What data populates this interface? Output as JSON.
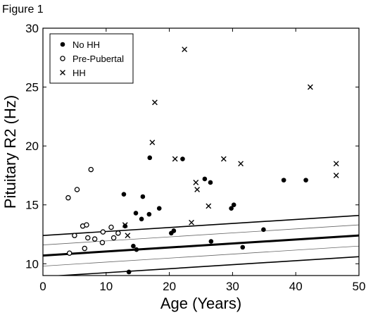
{
  "figure_label": "Figure 1",
  "chart_data": {
    "type": "scatter",
    "xlabel": "Age (Years)",
    "ylabel": "Pituitary R2 (Hz)",
    "xlim": [
      0,
      50
    ],
    "ylim": [
      9,
      30
    ],
    "x_ticks": [
      0,
      10,
      20,
      30,
      40,
      50
    ],
    "y_ticks": [
      10,
      15,
      20,
      25,
      30
    ],
    "grid": false,
    "legend_position": "top-left",
    "series": [
      {
        "name": "No HH",
        "marker": "filled-circle",
        "points": [
          [
            12.8,
            15.9
          ],
          [
            13.0,
            13.2
          ],
          [
            13.6,
            9.3
          ],
          [
            14.3,
            11.5
          ],
          [
            14.7,
            14.3
          ],
          [
            14.8,
            11.2
          ],
          [
            15.6,
            13.8
          ],
          [
            15.8,
            15.7
          ],
          [
            16.8,
            14.2
          ],
          [
            16.9,
            19.0
          ],
          [
            18.4,
            14.7
          ],
          [
            20.3,
            12.6
          ],
          [
            20.7,
            12.8
          ],
          [
            22.1,
            18.9
          ],
          [
            25.6,
            17.2
          ],
          [
            26.5,
            16.9
          ],
          [
            26.6,
            11.9
          ],
          [
            29.8,
            14.7
          ],
          [
            30.2,
            15.0
          ],
          [
            31.6,
            11.4
          ],
          [
            34.9,
            12.9
          ],
          [
            38.1,
            17.1
          ],
          [
            41.6,
            17.1
          ]
        ]
      },
      {
        "name": "Pre-Pubertal",
        "marker": "open-circle",
        "points": [
          [
            4.0,
            15.6
          ],
          [
            4.2,
            10.9
          ],
          [
            5.0,
            12.4
          ],
          [
            5.4,
            16.3
          ],
          [
            6.3,
            13.2
          ],
          [
            6.6,
            11.3
          ],
          [
            6.9,
            13.3
          ],
          [
            7.1,
            12.2
          ],
          [
            7.6,
            18.0
          ],
          [
            8.2,
            12.1
          ],
          [
            9.4,
            11.8
          ],
          [
            9.5,
            12.7
          ],
          [
            10.8,
            13.1
          ],
          [
            11.2,
            12.2
          ],
          [
            11.9,
            12.6
          ]
        ]
      },
      {
        "name": "HH",
        "marker": "x",
        "points": [
          [
            13.0,
            13.3
          ],
          [
            13.4,
            12.4
          ],
          [
            17.3,
            20.3
          ],
          [
            17.7,
            23.7
          ],
          [
            20.9,
            18.9
          ],
          [
            22.4,
            28.2
          ],
          [
            23.5,
            13.5
          ],
          [
            24.2,
            16.9
          ],
          [
            24.4,
            16.3
          ],
          [
            26.2,
            14.9
          ],
          [
            28.6,
            18.9
          ],
          [
            31.3,
            18.5
          ],
          [
            42.3,
            25.0
          ],
          [
            46.4,
            18.5
          ],
          [
            46.4,
            17.5
          ]
        ]
      }
    ],
    "reference_lines": [
      {
        "style": "thick",
        "points": [
          [
            0,
            10.7
          ],
          [
            50,
            12.4
          ]
        ]
      },
      {
        "style": "medium",
        "points": [
          [
            0,
            12.4
          ],
          [
            50,
            14.1
          ]
        ]
      },
      {
        "style": "medium",
        "points": [
          [
            0,
            8.9
          ],
          [
            50,
            10.6
          ]
        ]
      },
      {
        "style": "thin-gray",
        "points": [
          [
            0,
            11.6
          ],
          [
            50,
            13.3
          ]
        ]
      },
      {
        "style": "thin-gray",
        "points": [
          [
            0,
            9.8
          ],
          [
            50,
            11.5
          ]
        ]
      }
    ]
  }
}
